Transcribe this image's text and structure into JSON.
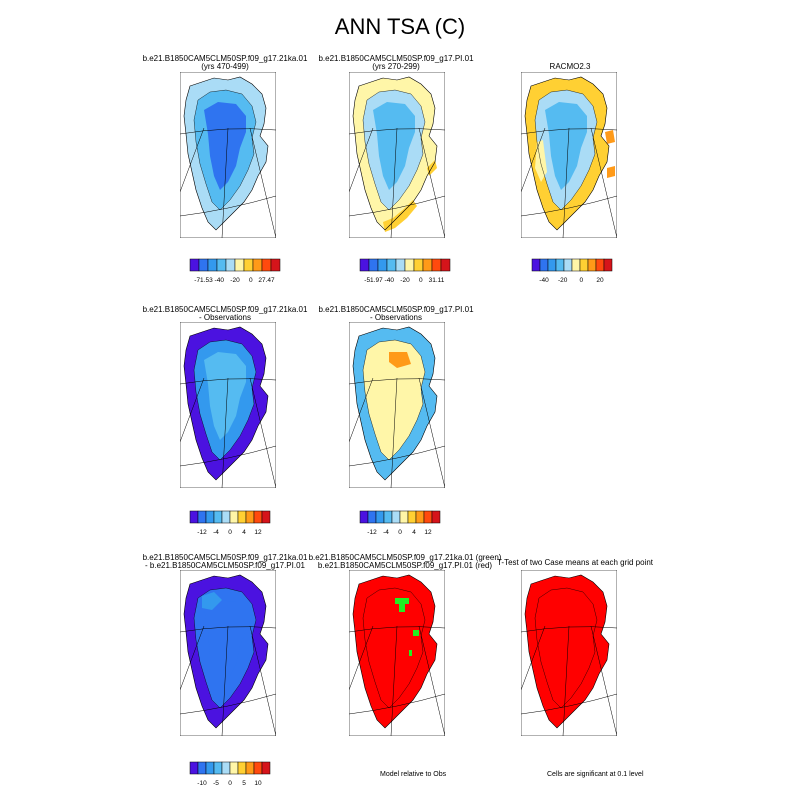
{
  "title": "ANN TSA (C)",
  "colors": {
    "c1": "#4b12e0",
    "c2": "#2f74f0",
    "c3": "#3399ee",
    "c4": "#55bbf1",
    "c5": "#aadcf6",
    "c6": "#fff6a8",
    "c7": "#ffd033",
    "c8": "#ff9a18",
    "c9": "#ff4a0e",
    "c10": "#d6141a",
    "diff_red": "#ff0000",
    "diff_green": "#22ee22"
  },
  "panels": [
    {
      "id": "p1",
      "line1": "b.e21.B1850CAM5CLM50SP.f09_g17.21ka.01",
      "line2": "(yrs 470-499)",
      "style": "blue_cold"
    },
    {
      "id": "p2",
      "line1": "b.e21.B1850CAM5CLM50SP.f09_g17.PI.01",
      "line2": "(yrs 270-299)",
      "style": "blue_warm_edges"
    },
    {
      "id": "p3",
      "line1": "RACMO2.3",
      "line2": "",
      "style": "racmo"
    },
    {
      "id": "p4",
      "line1": "b.e21.B1850CAM5CLM50SP.f09_g17.21ka.01",
      "line2": "- Observations",
      "style": "diff_blue"
    },
    {
      "id": "p5",
      "line1": "b.e21.B1850CAM5CLM50SP.f09_g17.PI.01",
      "line2": "- Observations",
      "style": "diff_yellow"
    },
    {
      "id": "p6",
      "line1": "b.e21.B1850CAM5CLM50SP.f09_g17.21ka.01",
      "line2": "- b.e21.B1850CAM5CLM50SP.f09_g17.PI.01",
      "style": "diff_deep"
    },
    {
      "id": "p7",
      "line1": "b.e21.B1850CAM5CLM50SP.f09_g17.21ka.01 (green)",
      "line2": "b.e21.B1850CAM5CLM50SP.f09_g17.PI.01 (red)",
      "style": "red_green"
    },
    {
      "id": "p8",
      "line1": "T-Test of two Case means at each grid point",
      "line2": "",
      "style": "red_only"
    }
  ],
  "colorbars": [
    {
      "id": "cb1",
      "labels": [
        "-71.53",
        "-40",
        "-20",
        "0",
        "27.47"
      ]
    },
    {
      "id": "cb2",
      "labels": [
        "-51.97",
        "-40",
        "-20",
        "0",
        "31.11"
      ]
    },
    {
      "id": "cb3",
      "labels": [
        "-40",
        "-20",
        "0",
        "20"
      ]
    },
    {
      "id": "cb4",
      "labels": [
        "-12",
        "-4",
        "0",
        "4",
        "12"
      ]
    },
    {
      "id": "cb5",
      "labels": [
        "-12",
        "-4",
        "0",
        "4",
        "12"
      ]
    },
    {
      "id": "cb6",
      "labels": [
        "-10",
        "-5",
        "0",
        "5",
        "10"
      ]
    }
  ],
  "notes": {
    "model_relative": "Model relative to Obs",
    "significance": "Cells are significant at 0.1 level"
  }
}
